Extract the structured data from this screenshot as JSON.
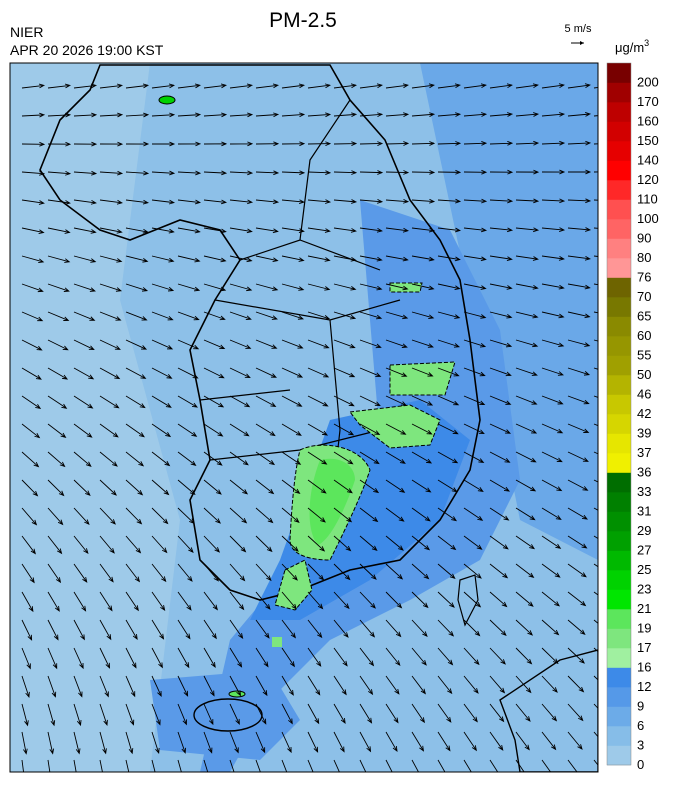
{
  "header": {
    "title": "PM-2.5",
    "agency": "NIER",
    "timestamp": "APR 20 2026 19:00 KST"
  },
  "wind_legend": {
    "label": "5 m/s"
  },
  "colorbar": {
    "unit": "μg/m",
    "unit_exponent": "3",
    "labels": [
      0,
      3,
      6,
      9,
      12,
      16,
      17,
      19,
      21,
      23,
      25,
      27,
      29,
      31,
      33,
      36,
      37,
      39,
      42,
      46,
      50,
      55,
      60,
      65,
      70,
      76,
      80,
      90,
      100,
      110,
      120,
      140,
      150,
      160,
      170,
      200
    ],
    "colors": [
      "#9ecae9",
      "#86bde8",
      "#6cabe8",
      "#5599e8",
      "#3d8ae8",
      "#a0f0a0",
      "#7ee67e",
      "#5ce65c",
      "#00e600",
      "#00d200",
      "#00b900",
      "#00a000",
      "#009000",
      "#008000",
      "#006e00",
      "#f0f000",
      "#e6e600",
      "#d6d600",
      "#c8c800",
      "#b4b400",
      "#a0a000",
      "#969600",
      "#8a8a00",
      "#787800",
      "#6e6400",
      "#ff9696",
      "#ff8080",
      "#ff6464",
      "#ff5050",
      "#ff2828",
      "#ff0000",
      "#e60000",
      "#d20000",
      "#be0000",
      "#a00000",
      "#780000"
    ]
  }
}
